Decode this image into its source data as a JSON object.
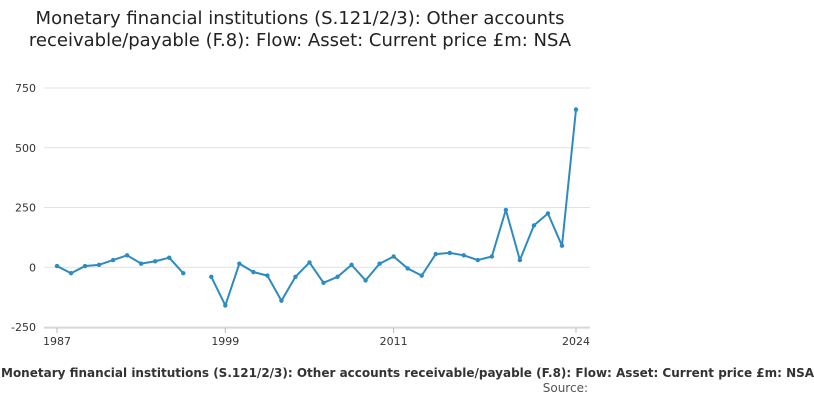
{
  "chart_data": {
    "type": "line",
    "title": "Monetary financial institutions (S.121/2/3): Other accounts receivable/payable (F.8): Flow: Asset: Current price £m: NSA",
    "x": [
      1987,
      1988,
      1989,
      1990,
      1991,
      1992,
      1993,
      1994,
      1995,
      1996,
      1997,
      1998,
      1999,
      2000,
      2001,
      2002,
      2003,
      2004,
      2005,
      2006,
      2007,
      2008,
      2009,
      2010,
      2011,
      2012,
      2013,
      2014,
      2015,
      2016,
      2017,
      2018,
      2019,
      2020,
      2021,
      2022,
      2023,
      2024
    ],
    "series": [
      {
        "name": "Monetary financial institutions (S.121/2/3): Other accounts receivable/payable (F.8): Flow: Asset: Current price £m: NSA",
        "color": "#2e8bc0",
        "values": [
          5,
          -25,
          5,
          10,
          30,
          50,
          15,
          25,
          40,
          -25,
          null,
          -40,
          -160,
          15,
          -20,
          -35,
          -140,
          -40,
          20,
          -65,
          -40,
          10,
          -55,
          15,
          45,
          -5,
          -35,
          55,
          60,
          50,
          30,
          45,
          240,
          30,
          175,
          225,
          90,
          660
        ]
      }
    ],
    "xticks": [
      "1987",
      "1999",
      "2011",
      "2024"
    ],
    "yticks": [
      "750",
      "500",
      "250",
      "0",
      "-250"
    ],
    "ylim": [
      -250,
      750
    ],
    "xlim": [
      1987,
      2024
    ],
    "grid": true,
    "legend_position": "bottom",
    "source_label": "Source:"
  }
}
